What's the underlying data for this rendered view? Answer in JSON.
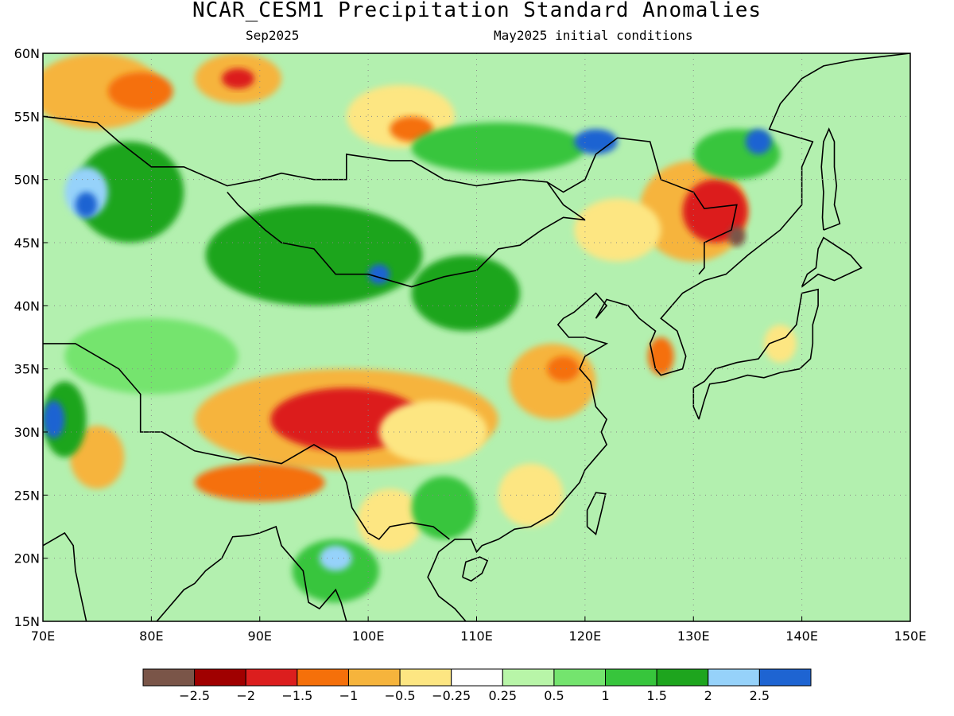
{
  "header": {
    "title": "NCAR_CESM1 Precipitation Standard Anomalies",
    "valid_month": "Sep2025",
    "init": "May2025 initial conditions"
  },
  "map": {
    "lon_range": [
      70,
      150
    ],
    "lat_range": [
      15,
      60
    ],
    "lon_ticks": [
      "70E",
      "80E",
      "90E",
      "100E",
      "110E",
      "120E",
      "130E",
      "140E",
      "150E"
    ],
    "lat_ticks": [
      "15N",
      "20N",
      "25N",
      "30N",
      "35N",
      "40N",
      "45N",
      "50N",
      "55N",
      "60N"
    ],
    "grid": "dotted"
  },
  "colorbar": {
    "colors": [
      "#7a5548",
      "#a00000",
      "#dc1e1e",
      "#f5700a",
      "#f6b43c",
      "#fde682",
      "#ffffff",
      "#b8f5a8",
      "#74e46e",
      "#37c53c",
      "#1ea51e",
      "#96d2fa",
      "#1e64d2"
    ],
    "labels": [
      "−2.5",
      "−2",
      "−1.5",
      "−1",
      "−0.5",
      "−0.25",
      "0.25",
      "0.5",
      "1",
      "1.5",
      "2",
      "2.5"
    ]
  },
  "anomaly_regions": [
    {
      "lon": 75,
      "lat": 57,
      "rx": 6,
      "ry": 3,
      "level": -1.0
    },
    {
      "lon": 79,
      "lat": 57,
      "rx": 3,
      "ry": 1.5,
      "level": -1.5
    },
    {
      "lon": 88,
      "lat": 58,
      "rx": 4,
      "ry": 2,
      "level": -1.0
    },
    {
      "lon": 88,
      "lat": 58,
      "rx": 1.5,
      "ry": 0.8,
      "level": -2.0
    },
    {
      "lon": 103,
      "lat": 55,
      "rx": 5,
      "ry": 2.5,
      "level": -0.5
    },
    {
      "lon": 104,
      "lat": 54,
      "rx": 2,
      "ry": 1,
      "level": -1.5
    },
    {
      "lon": 130,
      "lat": 47.5,
      "rx": 5,
      "ry": 4,
      "level": -1.0
    },
    {
      "lon": 132,
      "lat": 47.5,
      "rx": 3,
      "ry": 2.5,
      "level": -2.0
    },
    {
      "lon": 134,
      "lat": 45.5,
      "rx": 0.8,
      "ry": 0.8,
      "level": -3.0
    },
    {
      "lon": 123,
      "lat": 46,
      "rx": 4,
      "ry": 2.5,
      "level": -0.5
    },
    {
      "lon": 98,
      "lat": 31,
      "rx": 14,
      "ry": 4,
      "level": -1.0
    },
    {
      "lon": 98,
      "lat": 31,
      "rx": 7,
      "ry": 2.5,
      "level": -2.0
    },
    {
      "lon": 106,
      "lat": 30,
      "rx": 5,
      "ry": 2.5,
      "level": -0.5
    },
    {
      "lon": 90,
      "lat": 26,
      "rx": 6,
      "ry": 1.5,
      "level": -1.5
    },
    {
      "lon": 75,
      "lat": 28,
      "rx": 2.5,
      "ry": 2.5,
      "level": -1.0
    },
    {
      "lon": 117,
      "lat": 34,
      "rx": 4,
      "ry": 3,
      "level": -1.0
    },
    {
      "lon": 118,
      "lat": 35,
      "rx": 1.5,
      "ry": 1,
      "level": -1.5
    },
    {
      "lon": 127,
      "lat": 36,
      "rx": 1.2,
      "ry": 1.5,
      "level": -1.5
    },
    {
      "lon": 102,
      "lat": 23,
      "rx": 3,
      "ry": 2.5,
      "level": -0.5
    },
    {
      "lon": 115,
      "lat": 25,
      "rx": 3,
      "ry": 2.5,
      "level": -0.5
    },
    {
      "lon": 138,
      "lat": 37,
      "rx": 1.5,
      "ry": 1.5,
      "level": -0.5
    },
    {
      "lon": 78,
      "lat": 49,
      "rx": 5,
      "ry": 4,
      "level": 1.5
    },
    {
      "lon": 74,
      "lat": 49,
      "rx": 2,
      "ry": 2,
      "level": 2.0
    },
    {
      "lon": 74,
      "lat": 48,
      "rx": 1,
      "ry": 1,
      "level": 2.5
    },
    {
      "lon": 95,
      "lat": 44,
      "rx": 10,
      "ry": 4,
      "level": 1.5
    },
    {
      "lon": 101,
      "lat": 42.5,
      "rx": 1,
      "ry": 0.8,
      "level": 2.5
    },
    {
      "lon": 109,
      "lat": 41,
      "rx": 5,
      "ry": 3,
      "level": 1.5
    },
    {
      "lon": 112,
      "lat": 52.5,
      "rx": 8,
      "ry": 2,
      "level": 1.0
    },
    {
      "lon": 121,
      "lat": 53,
      "rx": 2,
      "ry": 1,
      "level": 2.5
    },
    {
      "lon": 134,
      "lat": 52,
      "rx": 4,
      "ry": 2,
      "level": 1.0
    },
    {
      "lon": 136,
      "lat": 53,
      "rx": 1.2,
      "ry": 1,
      "level": 2.5
    },
    {
      "lon": 72,
      "lat": 31,
      "rx": 2,
      "ry": 3,
      "level": 1.5
    },
    {
      "lon": 71,
      "lat": 31,
      "rx": 1,
      "ry": 1.5,
      "level": 2.5
    },
    {
      "lon": 107,
      "lat": 24,
      "rx": 3,
      "ry": 2.5,
      "level": 1.0
    },
    {
      "lon": 97,
      "lat": 19,
      "rx": 4,
      "ry": 2.5,
      "level": 1.0
    },
    {
      "lon": 97,
      "lat": 20,
      "rx": 1.5,
      "ry": 1,
      "level": 2.0
    },
    {
      "lon": 80,
      "lat": 36,
      "rx": 8,
      "ry": 3,
      "level": 0.5
    }
  ],
  "coastlines": [
    {
      "name": "east-asia-coast",
      "points": [
        [
          150,
          60
        ],
        [
          145,
          59.5
        ],
        [
          142,
          59
        ],
        [
          140,
          58
        ],
        [
          138,
          56
        ],
        [
          137,
          54
        ],
        [
          141,
          53
        ],
        [
          140,
          51
        ],
        [
          140,
          48
        ],
        [
          138,
          46
        ],
        [
          135,
          44
        ],
        [
          133,
          42.5
        ],
        [
          131,
          42
        ],
        [
          129,
          41
        ],
        [
          128,
          40
        ],
        [
          127,
          39
        ],
        [
          128.5,
          38
        ],
        [
          129.3,
          36
        ],
        [
          129,
          35
        ],
        [
          127,
          34.5
        ],
        [
          126.5,
          35
        ],
        [
          126,
          37
        ],
        [
          126.5,
          38
        ],
        [
          125,
          39
        ],
        [
          124,
          40
        ],
        [
          122,
          40.5
        ],
        [
          121,
          39
        ],
        [
          122,
          40
        ],
        [
          121,
          41
        ],
        [
          119,
          39.5
        ],
        [
          118,
          39
        ],
        [
          117.5,
          38.5
        ],
        [
          118.5,
          37.5
        ],
        [
          120,
          37.5
        ],
        [
          122,
          37
        ],
        [
          121,
          36.5
        ],
        [
          120,
          36
        ],
        [
          119.5,
          35
        ],
        [
          120.5,
          34
        ],
        [
          121,
          32
        ],
        [
          122,
          31
        ],
        [
          121.5,
          30
        ],
        [
          122,
          29
        ],
        [
          121,
          28
        ],
        [
          120,
          27
        ],
        [
          119.5,
          26
        ],
        [
          118.5,
          25
        ],
        [
          117,
          23.5
        ],
        [
          115,
          22.5
        ],
        [
          113.5,
          22.3
        ],
        [
          112,
          21.5
        ],
        [
          110.5,
          21
        ],
        [
          110,
          20.5
        ],
        [
          109.5,
          21.5
        ],
        [
          108,
          21.5
        ],
        [
          106.5,
          20.5
        ],
        [
          106,
          19.5
        ],
        [
          105.5,
          18.5
        ],
        [
          106.5,
          17
        ],
        [
          108,
          16
        ],
        [
          109,
          15
        ]
      ]
    },
    {
      "name": "indochina-west-coast",
      "points": [
        [
          98,
          15
        ],
        [
          97.5,
          16.5
        ],
        [
          97,
          17.5
        ],
        [
          95.5,
          16
        ],
        [
          94.5,
          16.5
        ],
        [
          94,
          19
        ],
        [
          93,
          20
        ],
        [
          92,
          21
        ],
        [
          91.5,
          22.5
        ],
        [
          90,
          22
        ],
        [
          89,
          21.8
        ],
        [
          87.5,
          21.7
        ],
        [
          86.5,
          20
        ],
        [
          85,
          19
        ],
        [
          84,
          18
        ],
        [
          83,
          17.5
        ],
        [
          82,
          16.5
        ],
        [
          81,
          15.5
        ],
        [
          80.5,
          15
        ]
      ]
    },
    {
      "name": "india-west-coast",
      "points": [
        [
          70,
          21
        ],
        [
          72,
          22
        ],
        [
          72.8,
          21
        ],
        [
          73,
          19
        ],
        [
          73.5,
          17
        ],
        [
          74,
          15
        ]
      ]
    },
    {
      "name": "japan-honshu",
      "points": [
        [
          130.5,
          31
        ],
        [
          131,
          32.5
        ],
        [
          131.5,
          33.8
        ],
        [
          133,
          34
        ],
        [
          135,
          34.5
        ],
        [
          136.5,
          34.3
        ],
        [
          138,
          34.7
        ],
        [
          139.8,
          35
        ],
        [
          140.8,
          35.8
        ],
        [
          141,
          37
        ],
        [
          141,
          38.5
        ],
        [
          141.5,
          40
        ],
        [
          141.5,
          41.3
        ],
        [
          140,
          41
        ],
        [
          139.8,
          40
        ],
        [
          139.5,
          38.5
        ],
        [
          138.5,
          37.5
        ],
        [
          137,
          37
        ],
        [
          136,
          35.8
        ],
        [
          134,
          35.5
        ],
        [
          132,
          35
        ],
        [
          131,
          34
        ],
        [
          130,
          33.5
        ],
        [
          130,
          32
        ],
        [
          130.5,
          31
        ]
      ]
    },
    {
      "name": "japan-hokkaido",
      "points": [
        [
          140,
          41.5
        ],
        [
          141.5,
          42.5
        ],
        [
          143,
          42
        ],
        [
          145.5,
          43
        ],
        [
          144.5,
          44
        ],
        [
          142,
          45.4
        ],
        [
          141.5,
          44.5
        ],
        [
          141.3,
          43
        ],
        [
          140.5,
          42.5
        ],
        [
          140,
          41.5
        ]
      ]
    },
    {
      "name": "sakhalin",
      "points": [
        [
          142,
          46
        ],
        [
          143.5,
          46.5
        ],
        [
          143,
          48
        ],
        [
          143.2,
          49.5
        ],
        [
          143,
          51
        ],
        [
          143,
          53
        ],
        [
          142.5,
          54
        ],
        [
          142,
          53
        ],
        [
          141.8,
          51
        ],
        [
          142,
          49
        ],
        [
          141.9,
          47
        ],
        [
          142,
          46
        ]
      ]
    },
    {
      "name": "taiwan",
      "points": [
        [
          120.2,
          22.5
        ],
        [
          121,
          21.9
        ],
        [
          121.6,
          24
        ],
        [
          121.9,
          25.1
        ],
        [
          121,
          25.2
        ],
        [
          120.2,
          23.8
        ],
        [
          120.2,
          22.5
        ]
      ]
    },
    {
      "name": "hainan",
      "points": [
        [
          108.7,
          18.5
        ],
        [
          109.5,
          18.2
        ],
        [
          110.5,
          18.8
        ],
        [
          111,
          19.8
        ],
        [
          110.3,
          20.1
        ],
        [
          109,
          19.7
        ],
        [
          108.7,
          18.5
        ]
      ]
    },
    {
      "name": "russia-border",
      "points": [
        [
          70,
          55
        ],
        [
          75,
          54.5
        ],
        [
          77,
          53
        ],
        [
          80,
          51
        ],
        [
          83,
          51
        ],
        [
          87,
          49.5
        ],
        [
          90,
          50
        ],
        [
          92,
          50.5
        ],
        [
          95,
          50
        ],
        [
          98,
          50
        ],
        [
          98,
          52
        ],
        [
          102,
          51.5
        ],
        [
          104,
          51.5
        ],
        [
          107,
          50
        ],
        [
          110,
          49.5
        ],
        [
          114,
          50
        ],
        [
          116.5,
          49.8
        ],
        [
          118,
          49
        ],
        [
          120,
          50
        ],
        [
          121,
          52
        ],
        [
          123,
          53.3
        ],
        [
          126,
          53
        ],
        [
          127,
          50
        ],
        [
          130,
          49
        ],
        [
          131,
          47.7
        ],
        [
          134,
          48
        ],
        [
          133.5,
          46
        ],
        [
          131,
          45
        ],
        [
          131,
          43
        ],
        [
          130.5,
          42.5
        ]
      ]
    },
    {
      "name": "mongolia-china-border",
      "points": [
        [
          87,
          49
        ],
        [
          88,
          48
        ],
        [
          90.5,
          46
        ],
        [
          92,
          45
        ],
        [
          95,
          44.5
        ],
        [
          97,
          42.5
        ],
        [
          100,
          42.5
        ],
        [
          104,
          41.5
        ],
        [
          107,
          42.3
        ],
        [
          110,
          42.8
        ],
        [
          112,
          44.5
        ],
        [
          114,
          44.8
        ],
        [
          116,
          46
        ],
        [
          118,
          47
        ],
        [
          120,
          46.8
        ],
        [
          118,
          48
        ],
        [
          116.5,
          49.8
        ]
      ]
    },
    {
      "name": "south-asia-borders",
      "points": [
        [
          70,
          37
        ],
        [
          73,
          37
        ],
        [
          75,
          36
        ],
        [
          77,
          35
        ],
        [
          79,
          33
        ],
        [
          79,
          30
        ],
        [
          81,
          30
        ],
        [
          84,
          28.5
        ],
        [
          88,
          27.8
        ],
        [
          89,
          28
        ],
        [
          92,
          27.5
        ],
        [
          95,
          29
        ],
        [
          97,
          28
        ],
        [
          98,
          26
        ],
        [
          98.5,
          24
        ],
        [
          100,
          22
        ],
        [
          101,
          21.5
        ],
        [
          102,
          22.5
        ],
        [
          104,
          22.8
        ],
        [
          106,
          22.5
        ],
        [
          107.5,
          21.5
        ]
      ]
    }
  ]
}
